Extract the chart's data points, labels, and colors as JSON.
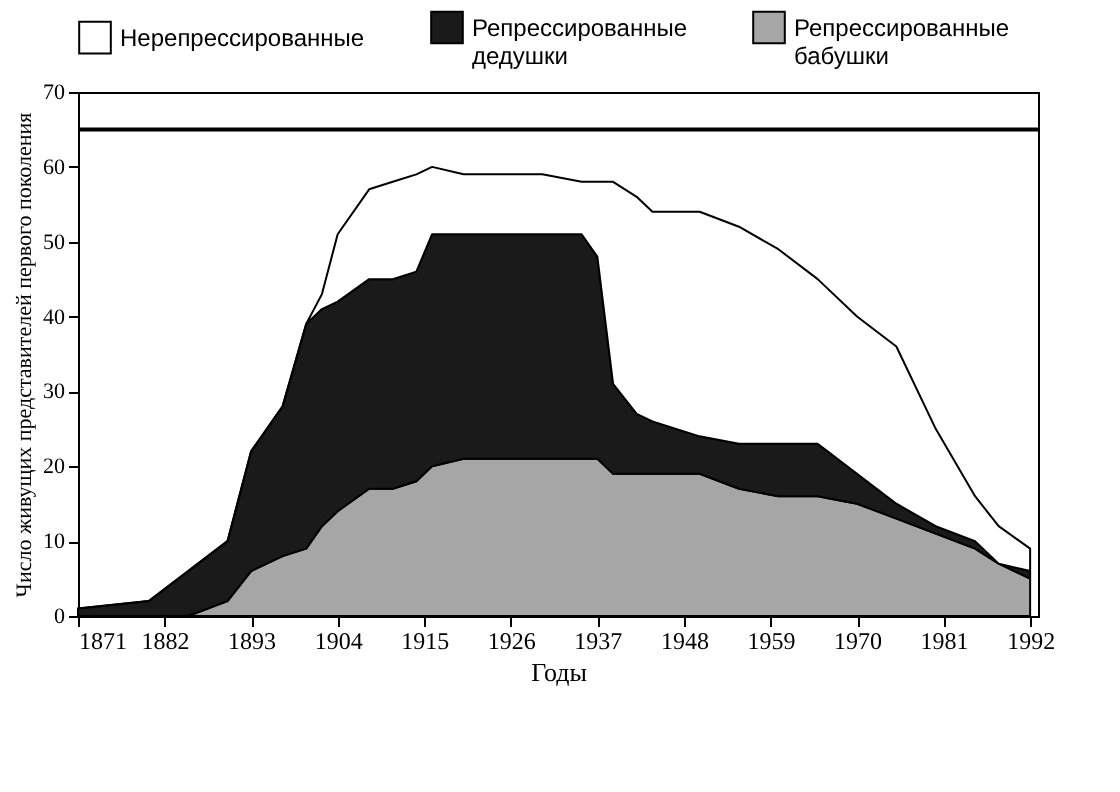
{
  "chart_data": {
    "type": "area",
    "stacked": true,
    "xlabel": "Годы",
    "ylabel": "Число живущих представителей первого поколения",
    "x": [
      1871,
      1880,
      1885,
      1890,
      1893,
      1897,
      1900,
      1902,
      1904,
      1908,
      1911,
      1914,
      1916,
      1920,
      1930,
      1935,
      1937,
      1939,
      1942,
      1944,
      1950,
      1955,
      1960,
      1965,
      1970,
      1975,
      1980,
      1985,
      1988,
      1992
    ],
    "series": [
      {
        "name": "Репрессированные бабушки",
        "color": "#a6a6a6",
        "values": [
          0,
          0,
          0,
          2,
          6,
          8,
          9,
          12,
          14,
          17,
          17,
          18,
          20,
          21,
          21,
          21,
          21,
          19,
          19,
          19,
          19,
          17,
          16,
          16,
          15,
          13,
          11,
          9,
          7,
          5
        ]
      },
      {
        "name": "Репрессированные дедушки",
        "color": "#1a1a1a",
        "values": [
          1,
          2,
          6,
          8,
          16,
          20,
          30,
          29,
          28,
          28,
          28,
          28,
          31,
          30,
          30,
          30,
          27,
          12,
          8,
          7,
          5,
          6,
          7,
          7,
          4,
          2,
          1,
          1,
          0,
          1
        ]
      },
      {
        "name": "Нерепрессированные",
        "color": "#ffffff",
        "values": [
          0,
          0,
          0,
          0,
          0,
          0,
          0,
          2,
          9,
          12,
          13,
          13,
          9,
          8,
          8,
          7,
          10,
          27,
          29,
          28,
          30,
          29,
          26,
          22,
          21,
          21,
          13,
          6,
          5,
          3
        ]
      }
    ],
    "xlim": [
      1871,
      1993
    ],
    "xticks": [
      1871,
      1882,
      1893,
      1904,
      1915,
      1926,
      1937,
      1948,
      1959,
      1970,
      1981,
      1992
    ],
    "ylim": [
      0,
      70
    ],
    "yticks": [
      0,
      10,
      20,
      30,
      40,
      50,
      60,
      70
    ],
    "ref_lines": [
      {
        "axis": "y",
        "value": 65,
        "color": "#000000"
      }
    ],
    "legend": "top"
  }
}
